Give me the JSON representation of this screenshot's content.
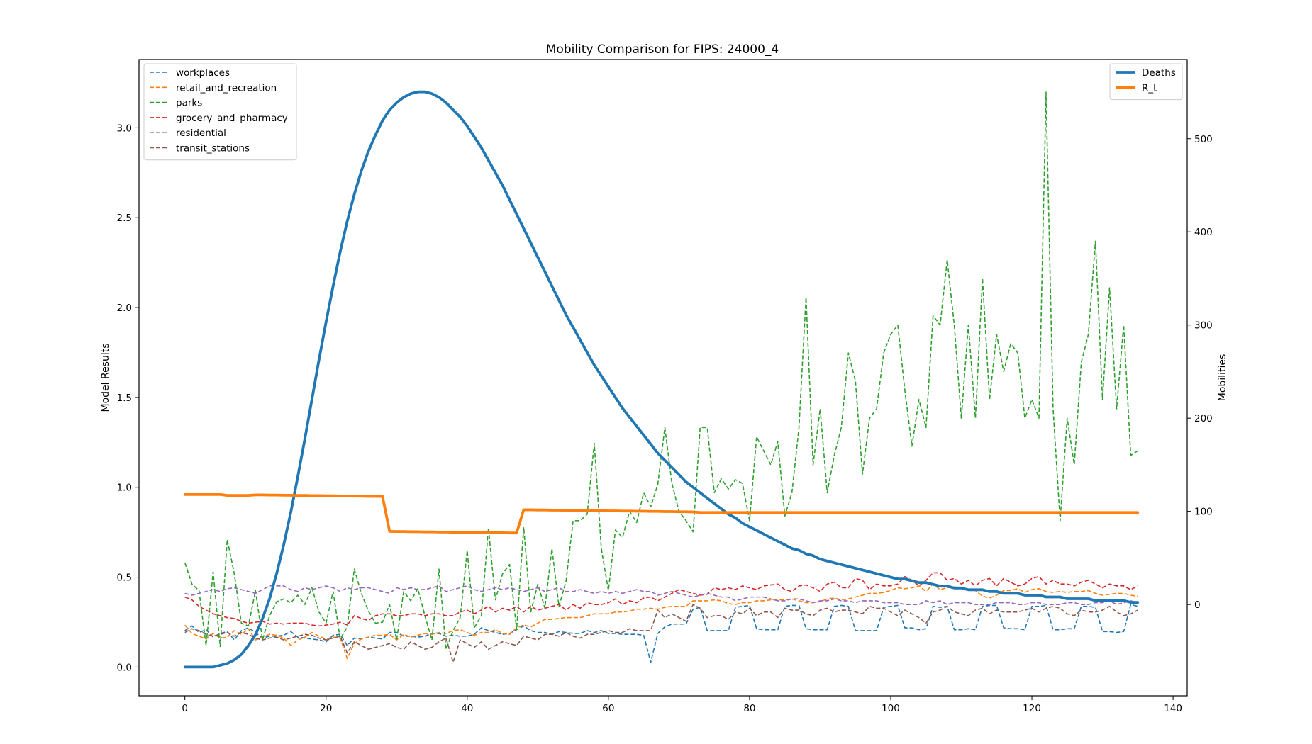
{
  "chart_data": {
    "type": "line",
    "title": "Mobility Comparison for FIPS: 24000_4",
    "xlabel": "",
    "ylabel_left": "Model Results",
    "ylabel_right": "Mobilities",
    "xlim": [
      -6.5,
      142
    ],
    "ylim_left": [
      -0.16,
      3.38
    ],
    "ylim_right": [
      -98,
      585
    ],
    "xticks": [
      0,
      20,
      40,
      60,
      80,
      100,
      120,
      140
    ],
    "yticks_left": [
      0.0,
      0.5,
      1.0,
      1.5,
      2.0,
      2.5,
      3.0
    ],
    "yticks_right": [
      0,
      100,
      200,
      300,
      400,
      500
    ],
    "x_start": 0,
    "grid": false,
    "legend_left_position": "upper-left",
    "legend_right_position": "upper-right",
    "model_series": [
      {
        "name": "Deaths",
        "color": "#1f77b4",
        "axis": "left",
        "values": [
          0.0,
          0.0,
          0.0,
          0.0,
          0.0,
          0.01,
          0.02,
          0.04,
          0.07,
          0.12,
          0.18,
          0.27,
          0.38,
          0.52,
          0.68,
          0.86,
          1.06,
          1.27,
          1.49,
          1.71,
          1.92,
          2.12,
          2.31,
          2.48,
          2.63,
          2.76,
          2.87,
          2.96,
          3.04,
          3.1,
          3.14,
          3.17,
          3.19,
          3.2,
          3.2,
          3.19,
          3.17,
          3.14,
          3.1,
          3.06,
          3.01,
          2.95,
          2.89,
          2.82,
          2.75,
          2.68,
          2.6,
          2.52,
          2.44,
          2.36,
          2.28,
          2.2,
          2.12,
          2.04,
          1.96,
          1.89,
          1.82,
          1.75,
          1.68,
          1.62,
          1.56,
          1.5,
          1.44,
          1.39,
          1.34,
          1.29,
          1.24,
          1.19,
          1.15,
          1.11,
          1.07,
          1.03,
          1.0,
          0.97,
          0.94,
          0.91,
          0.88,
          0.85,
          0.83,
          0.8,
          0.78,
          0.76,
          0.74,
          0.72,
          0.7,
          0.68,
          0.66,
          0.65,
          0.63,
          0.62,
          0.6,
          0.59,
          0.58,
          0.57,
          0.56,
          0.55,
          0.54,
          0.53,
          0.52,
          0.51,
          0.5,
          0.49,
          0.49,
          0.48,
          0.47,
          0.47,
          0.46,
          0.45,
          0.45,
          0.44,
          0.44,
          0.43,
          0.43,
          0.43,
          0.42,
          0.42,
          0.41,
          0.41,
          0.41,
          0.4,
          0.4,
          0.4,
          0.39,
          0.39,
          0.39,
          0.38,
          0.38,
          0.38,
          0.38,
          0.37,
          0.37,
          0.37,
          0.37,
          0.37,
          0.36,
          0.36
        ]
      },
      {
        "name": "R_t",
        "color": "#ff7f0e",
        "axis": "left",
        "values": [
          0.96,
          0.96,
          0.96,
          0.96,
          0.96,
          0.96,
          0.955,
          0.955,
          0.955,
          0.955,
          0.958,
          0.958,
          0.957,
          0.957,
          0.956,
          0.956,
          0.955,
          0.955,
          0.954,
          0.954,
          0.953,
          0.953,
          0.952,
          0.952,
          0.951,
          0.951,
          0.95,
          0.95,
          0.949,
          0.755,
          0.754,
          0.754,
          0.753,
          0.753,
          0.752,
          0.752,
          0.751,
          0.751,
          0.75,
          0.75,
          0.749,
          0.749,
          0.748,
          0.748,
          0.747,
          0.747,
          0.746,
          0.746,
          0.875,
          0.875,
          0.874,
          0.874,
          0.873,
          0.873,
          0.872,
          0.872,
          0.871,
          0.871,
          0.87,
          0.87,
          0.869,
          0.869,
          0.868,
          0.868,
          0.867,
          0.867,
          0.866,
          0.866,
          0.865,
          0.865,
          0.864,
          0.864,
          0.863,
          0.86,
          0.86,
          0.86,
          0.86,
          0.86,
          0.86,
          0.86,
          0.86,
          0.86,
          0.86,
          0.86,
          0.86,
          0.86,
          0.86,
          0.86,
          0.86,
          0.86,
          0.86,
          0.86,
          0.86,
          0.86,
          0.86,
          0.86,
          0.86,
          0.86,
          0.86,
          0.86,
          0.86,
          0.86,
          0.86,
          0.86,
          0.86,
          0.86,
          0.86,
          0.86,
          0.86,
          0.86,
          0.86,
          0.86,
          0.86,
          0.86,
          0.86,
          0.86,
          0.86,
          0.86,
          0.86,
          0.86,
          0.86,
          0.86,
          0.86,
          0.86,
          0.86,
          0.86,
          0.86,
          0.86,
          0.86,
          0.86,
          0.86,
          0.86,
          0.86,
          0.86,
          0.86,
          0.86
        ]
      }
    ],
    "mobility_series": [
      {
        "name": "workplaces",
        "color": "#1f77b4",
        "axis": "right",
        "values": [
          -28,
          -23,
          -30,
          -27,
          -35,
          -31,
          -29,
          -38,
          -28,
          -25,
          -30,
          -36,
          -34,
          -34,
          -33,
          -29,
          -35,
          -36,
          -37,
          -38,
          -40,
          -33,
          -32,
          -44,
          -36,
          -37,
          -35,
          -36,
          -37,
          -30,
          -30,
          -34,
          -34,
          -35,
          -34,
          -31,
          -31,
          -34,
          -33,
          -34,
          -34,
          -32,
          -25,
          -28,
          -30,
          -32,
          -31,
          -27,
          -23,
          -28,
          -30,
          -30,
          -32,
          -29,
          -30,
          -31,
          -31,
          -28,
          -30,
          -28,
          -31,
          -31,
          -32,
          -32,
          -32,
          -33,
          -62,
          -31,
          -24,
          -21,
          -21,
          -21,
          -5,
          -3,
          -28,
          -28,
          -28,
          -28,
          -3,
          -2,
          -1,
          -26,
          -27,
          -27,
          -27,
          -2,
          -1,
          -1,
          -26,
          -27,
          -27,
          -27,
          -2,
          -1,
          -2,
          -28,
          -28,
          -28,
          -28,
          -3,
          -2,
          -1,
          -25,
          -25,
          -27,
          -26,
          -2,
          -3,
          -2,
          -27,
          -27,
          -26,
          -27,
          -2,
          -1,
          -1,
          -25,
          -26,
          -26,
          -27,
          -2,
          -2,
          -1,
          -27,
          -27,
          -26,
          -26,
          -2,
          -2,
          -3,
          -29,
          -29,
          -30,
          -29,
          0,
          -2
        ]
      },
      {
        "name": "retail_and_recreation",
        "color": "#ff7f0e",
        "axis": "right",
        "values": [
          -22,
          -31,
          -34,
          -37,
          -31,
          -36,
          -35,
          -28,
          -32,
          -26,
          -38,
          -35,
          -32,
          -33,
          -36,
          -44,
          -38,
          -35,
          -30,
          -34,
          -37,
          -35,
          -36,
          -58,
          -42,
          -37,
          -35,
          -33,
          -33,
          -32,
          -38,
          -32,
          -35,
          -33,
          -31,
          -32,
          -30,
          -31,
          -28,
          -27,
          -30,
          -33,
          -30,
          -30,
          -27,
          -31,
          -32,
          -25,
          -22,
          -24,
          -20,
          -16,
          -16,
          -15,
          -14,
          -14,
          -14,
          -12,
          -10,
          -10,
          -10,
          -8,
          -8,
          -7,
          -5,
          -5,
          -4,
          -5,
          -3,
          -2,
          -2,
          -2,
          4,
          4,
          4,
          5,
          4,
          1,
          0,
          2,
          2,
          4,
          4,
          5,
          5,
          5,
          6,
          4,
          2,
          2,
          3,
          6,
          7,
          5,
          6,
          8,
          10,
          12,
          12,
          13,
          15,
          18,
          17,
          18,
          20,
          14,
          22,
          16,
          18,
          19,
          18,
          16,
          15,
          9,
          7,
          10,
          15,
          15,
          17,
          13,
          16,
          17,
          14,
          13,
          14,
          13,
          14,
          14,
          15,
          12,
          10,
          11,
          12,
          12,
          10,
          9
        ]
      },
      {
        "name": "parks",
        "color": "#2ca02c",
        "axis": "right",
        "values": [
          45,
          22,
          15,
          -44,
          35,
          -45,
          70,
          33,
          -20,
          -23,
          15,
          -38,
          -12,
          3,
          6,
          2,
          10,
          0,
          18,
          -8,
          -20,
          14,
          -37,
          -24,
          38,
          12,
          -7,
          -20,
          -19,
          0,
          -38,
          14,
          4,
          17,
          -12,
          -38,
          38,
          -48,
          -28,
          -14,
          58,
          -25,
          -12,
          82,
          5,
          33,
          43,
          -27,
          83,
          -8,
          22,
          -4,
          60,
          -2,
          25,
          90,
          90,
          97,
          173,
          60,
          15,
          80,
          72,
          100,
          88,
          120,
          105,
          129,
          190,
          130,
          100,
          90,
          78,
          190,
          190,
          120,
          135,
          124,
          134,
          130,
          90,
          180,
          165,
          150,
          175,
          95,
          120,
          190,
          330,
          150,
          210,
          120,
          160,
          190,
          270,
          240,
          140,
          200,
          210,
          270,
          290,
          300,
          230,
          170,
          220,
          190,
          310,
          300,
          370,
          300,
          200,
          300,
          200,
          350,
          220,
          290,
          250,
          280,
          270,
          200,
          220,
          200,
          550,
          210,
          90,
          200,
          150,
          260,
          290,
          390,
          220,
          340,
          210,
          300,
          160,
          165
        ]
      },
      {
        "name": "grocery_and_pharmacy",
        "color": "#d62728",
        "axis": "right",
        "values": [
          8,
          5,
          -2,
          -6,
          -10,
          -12,
          -14,
          -15,
          -18,
          -20,
          -19,
          -18,
          -21,
          -20,
          -21,
          -20,
          -20,
          -20,
          -22,
          -23,
          -22,
          -21,
          -19,
          -22,
          -12,
          -15,
          -17,
          -12,
          -10,
          -10,
          -12,
          -12,
          -10,
          -10,
          -12,
          -10,
          -10,
          -12,
          -12,
          -8,
          -6,
          -10,
          -6,
          -2,
          -8,
          -4,
          -6,
          -2,
          -8,
          -2,
          -6,
          -4,
          -2,
          0,
          -6,
          0,
          -4,
          2,
          0,
          0,
          2,
          6,
          0,
          4,
          2,
          7,
          8,
          4,
          8,
          12,
          16,
          14,
          12,
          10,
          11,
          18,
          16,
          18,
          16,
          20,
          18,
          16,
          20,
          21,
          22,
          16,
          14,
          20,
          21,
          18,
          14,
          22,
          24,
          18,
          18,
          28,
          26,
          16,
          22,
          20,
          20,
          22,
          30,
          26,
          20,
          26,
          34,
          34,
          26,
          28,
          22,
          26,
          20,
          26,
          28,
          20,
          28,
          24,
          20,
          22,
          28,
          30,
          22,
          26,
          22,
          22,
          20,
          24,
          26,
          22,
          18,
          22,
          20,
          20,
          16,
          20
        ]
      },
      {
        "name": "residential",
        "color": "#9467bd",
        "axis": "right",
        "values": [
          12,
          10,
          12,
          14,
          16,
          14,
          17,
          18,
          16,
          14,
          12,
          16,
          20,
          20,
          20,
          16,
          14,
          18,
          16,
          18,
          20,
          18,
          14,
          18,
          16,
          18,
          18,
          16,
          14,
          12,
          18,
          16,
          18,
          16,
          16,
          18,
          20,
          14,
          16,
          18,
          20,
          16,
          14,
          16,
          18,
          16,
          18,
          16,
          14,
          16,
          18,
          14,
          16,
          18,
          14,
          14,
          16,
          14,
          12,
          14,
          12,
          14,
          12,
          14,
          16,
          14,
          14,
          10,
          12,
          14,
          12,
          10,
          8,
          10,
          12,
          10,
          8,
          8,
          4,
          6,
          8,
          8,
          8,
          6,
          4,
          4,
          6,
          6,
          4,
          2,
          4,
          4,
          6,
          4,
          4,
          2,
          4,
          4,
          4,
          2,
          2,
          2,
          0,
          0,
          0,
          4,
          2,
          4,
          0,
          2,
          2,
          2,
          0,
          0,
          0,
          2,
          2,
          2,
          0,
          0,
          2,
          2,
          0,
          0,
          0,
          2,
          2,
          0,
          0,
          2,
          2,
          4,
          0,
          2,
          4,
          2
        ]
      },
      {
        "name": "transit_stations",
        "color": "#8c564b",
        "axis": "right",
        "values": [
          -30,
          -26,
          -28,
          -32,
          -34,
          -32,
          -30,
          -34,
          -30,
          -32,
          -36,
          -38,
          -36,
          -35,
          -38,
          -36,
          -34,
          -32,
          -33,
          -36,
          -38,
          -36,
          -34,
          -52,
          -40,
          -44,
          -48,
          -46,
          -44,
          -42,
          -46,
          -48,
          -40,
          -44,
          -48,
          -46,
          -40,
          -36,
          -62,
          -38,
          -42,
          -46,
          -40,
          -48,
          -44,
          -40,
          -42,
          -44,
          -34,
          -36,
          -38,
          -32,
          -32,
          -34,
          -30,
          -34,
          -36,
          -32,
          -32,
          -30,
          -28,
          -30,
          -30,
          -26,
          -28,
          -28,
          -28,
          -6,
          -14,
          -10,
          -14,
          -18,
          0,
          -4,
          -14,
          -12,
          -12,
          -16,
          -8,
          -10,
          -4,
          -12,
          -8,
          -8,
          -14,
          -4,
          -6,
          -6,
          -10,
          -12,
          -6,
          -4,
          -8,
          -6,
          -6,
          -8,
          -10,
          -2,
          -4,
          -4,
          -8,
          -12,
          -6,
          -10,
          -14,
          -20,
          -8,
          -6,
          -2,
          -8,
          -10,
          -12,
          -6,
          -4,
          -10,
          -6,
          -8,
          -8,
          -8,
          -6,
          -4,
          -8,
          -4,
          -2,
          -4,
          -10,
          -12,
          -6,
          -8,
          -8,
          -6,
          -2,
          -8,
          -12,
          -10,
          -6
        ]
      }
    ]
  }
}
